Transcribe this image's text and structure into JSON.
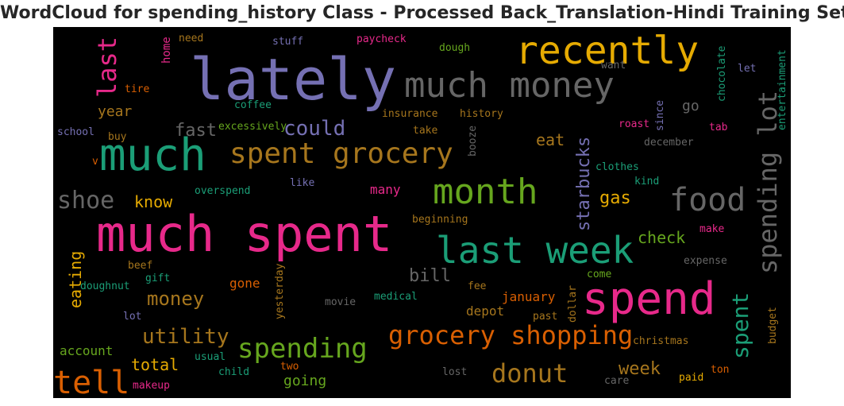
{
  "title": "WordCloud for spending_history Class - Processed Back_Translation-Hindi Training Set",
  "chart_data": {
    "type": "wordcloud",
    "background": "#000000",
    "palette": [
      "#1b9e77",
      "#d95f02",
      "#7570b3",
      "#e7298a",
      "#66a61e",
      "#e6ab02",
      "#a6761d",
      "#666666"
    ],
    "words": [
      {
        "text": "lately",
        "color": "#7570b3"
      },
      {
        "text": "recently",
        "color": "#e6ab02"
      },
      {
        "text": "much money",
        "color": "#666666"
      },
      {
        "text": "last",
        "color": "#e7298a"
      },
      {
        "text": "much",
        "color": "#1b9e77"
      },
      {
        "text": "spent grocery",
        "color": "#a6761d"
      },
      {
        "text": "could",
        "color": "#7570b3"
      },
      {
        "text": "fast",
        "color": "#666666"
      },
      {
        "text": "year",
        "color": "#a6761d"
      },
      {
        "text": "eat",
        "color": "#a6761d"
      },
      {
        "text": "starbucks",
        "color": "#7570b3"
      },
      {
        "text": "spending lot",
        "color": "#666666"
      },
      {
        "text": "month",
        "color": "#66a61e"
      },
      {
        "text": "food",
        "color": "#666666"
      },
      {
        "text": "shoe",
        "color": "#666666"
      },
      {
        "text": "know",
        "color": "#e6ab02"
      },
      {
        "text": "gas",
        "color": "#e6ab02"
      },
      {
        "text": "much spent",
        "color": "#e7298a"
      },
      {
        "text": "last week",
        "color": "#1b9e77"
      },
      {
        "text": "check",
        "color": "#66a61e"
      },
      {
        "text": "eating",
        "color": "#e6ab02"
      },
      {
        "text": "bill",
        "color": "#666666"
      },
      {
        "text": "money",
        "color": "#a6761d"
      },
      {
        "text": "spend",
        "color": "#e7298a"
      },
      {
        "text": "spent",
        "color": "#1b9e77"
      },
      {
        "text": "utility",
        "color": "#a6761d"
      },
      {
        "text": "spending",
        "color": "#66a61e"
      },
      {
        "text": "grocery shopping",
        "color": "#d95f02"
      },
      {
        "text": "tell",
        "color": "#d95f02"
      },
      {
        "text": "total",
        "color": "#e6ab02"
      },
      {
        "text": "donut",
        "color": "#a6761d"
      },
      {
        "text": "week",
        "color": "#a6761d"
      },
      {
        "text": "going",
        "color": "#66a61e"
      },
      {
        "text": "home",
        "color": "#e7298a"
      },
      {
        "text": "need",
        "color": "#a6761d"
      },
      {
        "text": "stuff",
        "color": "#7570b3"
      },
      {
        "text": "paycheck",
        "color": "#e7298a"
      },
      {
        "text": "dough",
        "color": "#66a61e"
      },
      {
        "text": "chocolate",
        "color": "#1b9e77"
      },
      {
        "text": "entertainment",
        "color": "#1b9e77"
      },
      {
        "text": "want",
        "color": "#666666"
      },
      {
        "text": "let",
        "color": "#7570b3"
      },
      {
        "text": "tire",
        "color": "#d95f02"
      },
      {
        "text": "coffee",
        "color": "#1b9e77"
      },
      {
        "text": "go",
        "color": "#666666"
      },
      {
        "text": "insurance",
        "color": "#a6761d"
      },
      {
        "text": "history",
        "color": "#a6761d"
      },
      {
        "text": "since",
        "color": "#7570b3"
      },
      {
        "text": "tab",
        "color": "#e7298a"
      },
      {
        "text": "school",
        "color": "#7570b3"
      },
      {
        "text": "buy",
        "color": "#a6761d"
      },
      {
        "text": "excessively",
        "color": "#66a61e"
      },
      {
        "text": "take",
        "color": "#a6761d"
      },
      {
        "text": "booze",
        "color": "#666666"
      },
      {
        "text": "roast",
        "color": "#e7298a"
      },
      {
        "text": "december",
        "color": "#666666"
      },
      {
        "text": "v",
        "color": "#d95f02"
      },
      {
        "text": "clothes",
        "color": "#1b9e77"
      },
      {
        "text": "kind",
        "color": "#1b9e77"
      },
      {
        "text": "overspend",
        "color": "#1b9e77"
      },
      {
        "text": "like",
        "color": "#7570b3"
      },
      {
        "text": "many",
        "color": "#e7298a"
      },
      {
        "text": "beginning",
        "color": "#a6761d"
      },
      {
        "text": "make",
        "color": "#e7298a"
      },
      {
        "text": "beef",
        "color": "#a6761d"
      },
      {
        "text": "expense",
        "color": "#666666"
      },
      {
        "text": "gift",
        "color": "#1b9e77"
      },
      {
        "text": "doughnut",
        "color": "#1b9e77"
      },
      {
        "text": "gone",
        "color": "#d95f02"
      },
      {
        "text": "fee",
        "color": "#a6761d"
      },
      {
        "text": "come",
        "color": "#66a61e"
      },
      {
        "text": "dollar",
        "color": "#a6761d"
      },
      {
        "text": "yesterday",
        "color": "#a6761d"
      },
      {
        "text": "movie",
        "color": "#666666"
      },
      {
        "text": "medical",
        "color": "#1b9e77"
      },
      {
        "text": "january",
        "color": "#d95f02"
      },
      {
        "text": "depot",
        "color": "#a6761d"
      },
      {
        "text": "lot",
        "color": "#7570b3"
      },
      {
        "text": "past",
        "color": "#a6761d"
      },
      {
        "text": "budget",
        "color": "#a6761d"
      },
      {
        "text": "account",
        "color": "#66a61e"
      },
      {
        "text": "christmas",
        "color": "#a6761d"
      },
      {
        "text": "usual",
        "color": "#1b9e77"
      },
      {
        "text": "child",
        "color": "#1b9e77"
      },
      {
        "text": "two",
        "color": "#d95f02"
      },
      {
        "text": "lost",
        "color": "#666666"
      },
      {
        "text": "ton",
        "color": "#d95f02"
      },
      {
        "text": "makeup",
        "color": "#e7298a"
      },
      {
        "text": "care",
        "color": "#666666"
      },
      {
        "text": "paid",
        "color": "#e6ab02"
      }
    ]
  }
}
